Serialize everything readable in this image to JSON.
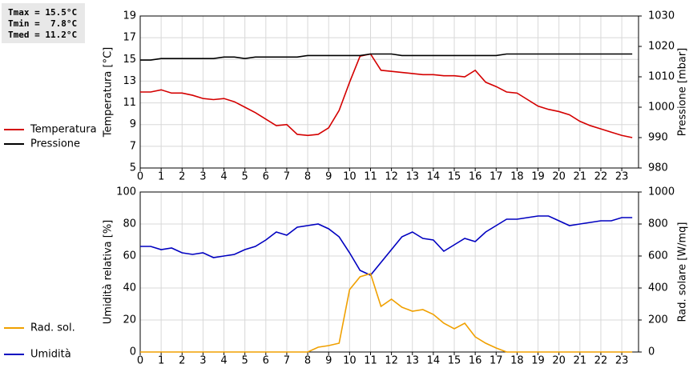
{
  "stats": [
    "Tmax = 15.5°C",
    "Tmin =  7.8°C",
    "Tmed = 11.2°C"
  ],
  "chart_data": [
    {
      "type": "line",
      "ylabel": "Temperatura [°C]",
      "y2label": "Pressione [mbar]",
      "grid": true,
      "x": [
        0,
        0.5,
        1,
        1.5,
        2,
        2.5,
        3,
        3.5,
        4,
        4.5,
        5,
        5.5,
        6,
        6.5,
        7,
        7.5,
        8,
        8.5,
        9,
        9.5,
        10,
        10.5,
        11,
        11.5,
        12,
        12.5,
        13,
        13.5,
        14,
        14.5,
        15,
        15.5,
        16,
        16.5,
        17,
        17.5,
        18,
        18.5,
        19,
        19.5,
        20,
        20.5,
        21,
        21.5,
        22,
        22.5,
        23,
        23.5
      ],
      "xlim": [
        0,
        23.8
      ],
      "xticks": [
        0,
        1,
        2,
        3,
        4,
        5,
        6,
        7,
        8,
        9,
        10,
        11,
        12,
        13,
        14,
        15,
        16,
        17,
        18,
        19,
        20,
        21,
        22,
        23
      ],
      "ylim": [
        5,
        19
      ],
      "yticks": [
        5,
        7,
        9,
        11,
        13,
        15,
        17,
        19
      ],
      "y2lim": [
        980,
        1030
      ],
      "y2ticks": [
        980,
        990,
        1000,
        1010,
        1020,
        1030
      ],
      "series": [
        {
          "name": "Temperatura",
          "color": "#d40000",
          "values": [
            12.0,
            12.0,
            12.2,
            11.9,
            11.9,
            11.7,
            11.4,
            11.3,
            11.4,
            11.1,
            10.6,
            10.1,
            9.5,
            8.9,
            9.0,
            8.1,
            8.0,
            8.1,
            8.7,
            10.3,
            12.9,
            15.3,
            15.5,
            14.0,
            13.9,
            13.8,
            13.7,
            13.6,
            13.6,
            13.5,
            13.5,
            13.4,
            14.0,
            12.9,
            12.5,
            12.0,
            11.9,
            11.3,
            10.7,
            10.4,
            10.2,
            9.9,
            9.3,
            8.9,
            8.6,
            8.3,
            8.0,
            7.8
          ]
        },
        {
          "name": "Pressione",
          "color": "#000000",
          "axis": "y2",
          "values": [
            1015.5,
            1015.5,
            1016,
            1016,
            1016,
            1016,
            1016,
            1016,
            1016.5,
            1016.5,
            1016,
            1016.5,
            1016.5,
            1016.5,
            1016.5,
            1016.5,
            1017,
            1017,
            1017,
            1017,
            1017,
            1017,
            1017.5,
            1017.5,
            1017.5,
            1017,
            1017,
            1017,
            1017,
            1017,
            1017,
            1017,
            1017,
            1017,
            1017,
            1017.5,
            1017.5,
            1017.5,
            1017.5,
            1017.5,
            1017.5,
            1017.5,
            1017.5,
            1017.5,
            1017.5,
            1017.5,
            1017.5,
            1017.5
          ]
        }
      ]
    },
    {
      "type": "line",
      "ylabel": "Umidità relativa [%]",
      "y2label": "Rad. solare [W/mq]",
      "grid": true,
      "x": [
        0,
        0.5,
        1,
        1.5,
        2,
        2.5,
        3,
        3.5,
        4,
        4.5,
        5,
        5.5,
        6,
        6.5,
        7,
        7.5,
        8,
        8.5,
        9,
        9.5,
        10,
        10.5,
        11,
        11.5,
        12,
        12.5,
        13,
        13.5,
        14,
        14.5,
        15,
        15.5,
        16,
        16.5,
        17,
        17.5,
        18,
        18.5,
        19,
        19.5,
        20,
        20.5,
        21,
        21.5,
        22,
        22.5,
        23,
        23.5
      ],
      "xlim": [
        0,
        23.8
      ],
      "xticks": [
        0,
        1,
        2,
        3,
        4,
        5,
        6,
        7,
        8,
        9,
        10,
        11,
        12,
        13,
        14,
        15,
        16,
        17,
        18,
        19,
        20,
        21,
        22,
        23
      ],
      "ylim": [
        0,
        100
      ],
      "yticks": [
        0,
        20,
        40,
        60,
        80,
        100
      ],
      "y2lim": [
        0,
        1000
      ],
      "y2ticks": [
        0,
        200,
        400,
        600,
        800,
        1000
      ],
      "series": [
        {
          "name": "Umidità",
          "color": "#0000c0",
          "values": [
            66,
            66,
            64,
            65,
            62,
            61,
            62,
            59,
            60,
            61,
            64,
            66,
            70,
            75,
            73,
            78,
            79,
            80,
            77,
            72,
            62,
            51,
            48,
            56,
            64,
            72,
            75,
            71,
            70,
            63,
            67,
            71,
            69,
            75,
            79,
            83,
            83,
            84,
            85,
            85,
            82,
            79,
            80,
            81,
            82,
            82,
            84,
            84
          ]
        },
        {
          "name": "Rad. sol.",
          "color": "#f0a000",
          "axis": "y2",
          "values": [
            0,
            0,
            0,
            0,
            0,
            0,
            0,
            0,
            0,
            0,
            0,
            0,
            0,
            0,
            0,
            0,
            0,
            30,
            40,
            55,
            390,
            470,
            490,
            285,
            330,
            280,
            255,
            265,
            235,
            180,
            145,
            180,
            95,
            55,
            25,
            0,
            0,
            0,
            0,
            0,
            0,
            0,
            0,
            0,
            0,
            0,
            0,
            0
          ]
        }
      ]
    }
  ]
}
